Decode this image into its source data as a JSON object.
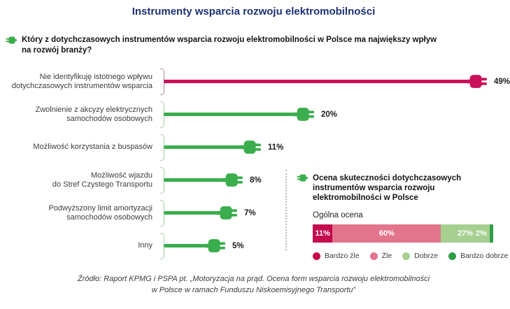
{
  "title": "Instrumenty wsparcia rozwoju elektromobilności",
  "question": "Który z dotychczasowych instrumentów wsparcia rozwoju elektromobilności w Polsce ma największy wpływ\nna rozwój branży?",
  "colors": {
    "accent_green": "#3aad4c",
    "accent_crimson": "#c9115a",
    "title_navy": "#1d3176"
  },
  "chart_data": [
    {
      "name": "main-bars",
      "type": "bar",
      "orientation": "horizontal",
      "unit": "%",
      "xlim": [
        0,
        50
      ],
      "grid": false,
      "categories": [
        "Nie identyfikuję istotnego wpływu dotychczasowych instrumentów wsparcia",
        "Zwolnienie z akcyzy elektrycznych samochodów osobowych",
        "Możliwość korzystania z buspasów",
        "Możliwość wjazdu do Stref Czystego Transportu",
        "Podwyższony limit amortyzacji samochodów osobowych",
        "Inny"
      ],
      "values": [
        49,
        20,
        11,
        8,
        7,
        5
      ],
      "rows": [
        {
          "label": "Nie identyfikuję istotnego wpływu\ndotychczasowych instrumentów wsparcia",
          "value": 49,
          "value_label": "49%",
          "color": "#c9115a",
          "bracket_color": "#b4839b"
        },
        {
          "label": "Zwolnienie z akcyzy elektrycznych\nsamochodów osobowych",
          "value": 20,
          "value_label": "20%",
          "color": "#3aad4c",
          "bracket_color": "#a5cba7"
        },
        {
          "label": "Możliwość korzystania z buspasów",
          "value": 11,
          "value_label": "11%",
          "color": "#3aad4c",
          "bracket_color": "#a5cba7"
        },
        {
          "label": "Możliwość wjazdu\ndo Stref Czystego Transportu",
          "value": 8,
          "value_label": "8%",
          "color": "#3aad4c",
          "bracket_color": "#a5cba7"
        },
        {
          "label": "Podwyższony limit amortyzacji\nsamochodów osobowych",
          "value": 7,
          "value_label": "7%",
          "color": "#3aad4c",
          "bracket_color": "#a5cba7"
        },
        {
          "label": "Inny",
          "value": 5,
          "value_label": "5%",
          "color": "#3aad4c",
          "bracket_color": "#a5cba7"
        }
      ]
    },
    {
      "name": "ogolna-ocena",
      "type": "stacked-bar",
      "unit": "%",
      "total": 100,
      "segments": [
        {
          "label": "Bardzo źle",
          "value": 11,
          "value_label": "11%",
          "color": "#c40b4e"
        },
        {
          "label": "Źle",
          "value": 60,
          "value_label": "60%",
          "color": "#e2758b"
        },
        {
          "label": "Dobrze",
          "value": 27,
          "value_label": "27%",
          "color": "#a7cf90"
        },
        {
          "label": "Bardzo dobrze",
          "value": 2,
          "value_label": "2%",
          "color": "#2e9e48"
        }
      ]
    }
  ],
  "right_panel": {
    "heading": "Ocena skuteczności dotychczasowych\ninstrumentów wsparcia rozwoju\nelektromobilności w Polsce",
    "sub_label": "Ogólna ocena",
    "legend": [
      {
        "label": "Bardzo źle",
        "color": "#c40b4e"
      },
      {
        "label": "Źle",
        "color": "#e2758b"
      },
      {
        "label": "Dobrze",
        "color": "#a7cf90"
      },
      {
        "label": "Bardzo dobrze",
        "color": "#2e9e48"
      }
    ]
  },
  "source": "Źródło: Raport KPMG i PSPA pt. „Motoryzacja na prąd. Ocena form wsparcia rozwoju elektromobilności\nw Polsce w ramach Funduszu Niskoemisyjnego Transportu”"
}
